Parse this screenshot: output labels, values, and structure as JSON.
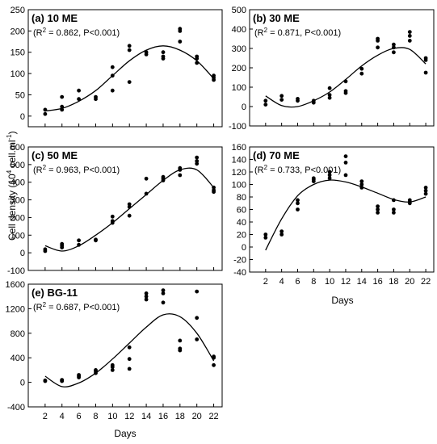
{
  "figure": {
    "ylabel_main": "Cell density (10",
    "ylabel_exp": "4",
    "ylabel_unit": " cell.ml",
    "ylabel_unit_exp": "-1",
    "ylabel_close": ")",
    "xlabel": "Days"
  },
  "chart_data": [
    {
      "type": "scatter",
      "title": "(a) 10 ME",
      "stats_r2": "0.862",
      "stats_p": "P<0.001",
      "xlabel": "Days",
      "ylabel": "Cell density (10^4 cell.ml^-1)",
      "xlim": [
        0,
        23
      ],
      "ylim": [
        -25,
        250
      ],
      "xticks": [],
      "yticks": [
        0,
        50,
        100,
        150,
        200,
        250
      ],
      "points": [
        [
          2,
          5
        ],
        [
          2,
          15
        ],
        [
          4,
          15
        ],
        [
          4,
          22
        ],
        [
          4,
          45
        ],
        [
          6,
          40
        ],
        [
          6,
          60
        ],
        [
          8,
          40
        ],
        [
          8,
          45
        ],
        [
          10,
          60
        ],
        [
          10,
          95
        ],
        [
          10,
          115
        ],
        [
          12,
          80
        ],
        [
          12,
          155
        ],
        [
          12,
          165
        ],
        [
          14,
          145
        ],
        [
          14,
          150
        ],
        [
          16,
          135
        ],
        [
          16,
          140
        ],
        [
          16,
          150
        ],
        [
          18,
          175
        ],
        [
          18,
          200
        ],
        [
          18,
          205
        ],
        [
          20,
          125
        ],
        [
          20,
          135
        ],
        [
          20,
          140
        ],
        [
          22,
          85
        ],
        [
          22,
          90
        ],
        [
          22,
          95
        ]
      ],
      "fit": [
        [
          2,
          12
        ],
        [
          4,
          18
        ],
        [
          6,
          35
        ],
        [
          8,
          60
        ],
        [
          10,
          95
        ],
        [
          12,
          130
        ],
        [
          14,
          155
        ],
        [
          16,
          165
        ],
        [
          18,
          155
        ],
        [
          20,
          130
        ],
        [
          22,
          88
        ]
      ]
    },
    {
      "type": "scatter",
      "title": "(b) 30 ME",
      "stats_r2": "0.871",
      "stats_p": "P<0.001",
      "xlabel": "Days",
      "ylabel": "Cell density (10^4 cell.ml^-1)",
      "xlim": [
        0,
        23
      ],
      "ylim": [
        -100,
        500
      ],
      "xticks": [],
      "yticks": [
        -100,
        0,
        100,
        200,
        300,
        400,
        500
      ],
      "points": [
        [
          2,
          10
        ],
        [
          2,
          30
        ],
        [
          4,
          35
        ],
        [
          4,
          55
        ],
        [
          6,
          30
        ],
        [
          6,
          40
        ],
        [
          8,
          20
        ],
        [
          8,
          30
        ],
        [
          10,
          45
        ],
        [
          10,
          60
        ],
        [
          10,
          95
        ],
        [
          12,
          70
        ],
        [
          12,
          80
        ],
        [
          12,
          130
        ],
        [
          14,
          170
        ],
        [
          14,
          195
        ],
        [
          16,
          305
        ],
        [
          16,
          340
        ],
        [
          16,
          350
        ],
        [
          18,
          280
        ],
        [
          18,
          305
        ],
        [
          18,
          320
        ],
        [
          20,
          340
        ],
        [
          20,
          365
        ],
        [
          20,
          385
        ],
        [
          22,
          175
        ],
        [
          22,
          240
        ],
        [
          22,
          250
        ]
      ],
      "fit": [
        [
          2,
          55
        ],
        [
          4,
          5
        ],
        [
          6,
          0
        ],
        [
          8,
          30
        ],
        [
          10,
          75
        ],
        [
          12,
          140
        ],
        [
          14,
          210
        ],
        [
          16,
          265
        ],
        [
          18,
          300
        ],
        [
          20,
          295
        ],
        [
          22,
          220
        ]
      ]
    },
    {
      "type": "scatter",
      "title": "(c) 50 ME",
      "stats_r2": "0.963",
      "stats_p": "P<0.001",
      "xlabel": "Days",
      "ylabel": "Cell density (10^4 cell.ml^-1)",
      "xlim": [
        0,
        23
      ],
      "ylim": [
        -100,
        600
      ],
      "xticks": [],
      "yticks": [
        -100,
        0,
        100,
        200,
        300,
        400,
        500,
        600
      ],
      "points": [
        [
          2,
          10
        ],
        [
          2,
          20
        ],
        [
          4,
          30
        ],
        [
          4,
          40
        ],
        [
          4,
          50
        ],
        [
          6,
          45
        ],
        [
          6,
          70
        ],
        [
          8,
          70
        ],
        [
          8,
          75
        ],
        [
          10,
          170
        ],
        [
          10,
          180
        ],
        [
          10,
          205
        ],
        [
          12,
          210
        ],
        [
          12,
          260
        ],
        [
          12,
          275
        ],
        [
          14,
          335
        ],
        [
          14,
          420
        ],
        [
          16,
          410
        ],
        [
          16,
          420
        ],
        [
          16,
          430
        ],
        [
          18,
          440
        ],
        [
          18,
          470
        ],
        [
          18,
          480
        ],
        [
          20,
          505
        ],
        [
          20,
          520
        ],
        [
          20,
          540
        ],
        [
          22,
          345
        ],
        [
          22,
          355
        ],
        [
          22,
          370
        ]
      ],
      "fit": [
        [
          2,
          40
        ],
        [
          4,
          10
        ],
        [
          6,
          40
        ],
        [
          8,
          100
        ],
        [
          10,
          170
        ],
        [
          12,
          250
        ],
        [
          14,
          330
        ],
        [
          16,
          410
        ],
        [
          18,
          470
        ],
        [
          20,
          470
        ],
        [
          22,
          370
        ]
      ]
    },
    {
      "type": "scatter",
      "title": "(d) 70 ME",
      "stats_r2": "0.733",
      "stats_p": "P<0.001",
      "xlabel": "Days",
      "ylabel": "Cell density (10^4 cell.ml^-1)",
      "xlim": [
        0,
        23
      ],
      "ylim": [
        -40,
        160
      ],
      "xticks": [
        2,
        4,
        6,
        8,
        10,
        12,
        14,
        16,
        18,
        20,
        22
      ],
      "yticks": [
        -40,
        -20,
        0,
        20,
        40,
        60,
        80,
        100,
        120,
        140,
        160
      ],
      "points": [
        [
          2,
          15
        ],
        [
          2,
          20
        ],
        [
          4,
          20
        ],
        [
          4,
          25
        ],
        [
          6,
          60
        ],
        [
          6,
          70
        ],
        [
          6,
          75
        ],
        [
          8,
          105
        ],
        [
          8,
          108
        ],
        [
          8,
          110
        ],
        [
          10,
          110
        ],
        [
          10,
          115
        ],
        [
          10,
          120
        ],
        [
          12,
          115
        ],
        [
          12,
          135
        ],
        [
          12,
          145
        ],
        [
          14,
          95
        ],
        [
          14,
          100
        ],
        [
          14,
          105
        ],
        [
          16,
          55
        ],
        [
          16,
          60
        ],
        [
          16,
          65
        ],
        [
          18,
          55
        ],
        [
          18,
          60
        ],
        [
          18,
          75
        ],
        [
          20,
          70
        ],
        [
          20,
          72
        ],
        [
          20,
          75
        ],
        [
          22,
          85
        ],
        [
          22,
          90
        ],
        [
          22,
          95
        ]
      ],
      "fit": [
        [
          2,
          -5
        ],
        [
          4,
          45
        ],
        [
          6,
          82
        ],
        [
          8,
          100
        ],
        [
          10,
          107
        ],
        [
          12,
          104
        ],
        [
          14,
          96
        ],
        [
          16,
          86
        ],
        [
          18,
          76
        ],
        [
          20,
          72
        ],
        [
          22,
          80
        ]
      ]
    },
    {
      "type": "scatter",
      "title": "(e) BG-11",
      "stats_r2": "0.687",
      "stats_p": "P<0.001",
      "xlabel": "Days",
      "ylabel": "Cell density (10^4 cell.ml^-1)",
      "xlim": [
        0,
        23
      ],
      "ylim": [
        -400,
        1600
      ],
      "xticks": [
        2,
        4,
        6,
        8,
        10,
        12,
        14,
        16,
        18,
        20,
        22
      ],
      "yticks": [
        -400,
        0,
        400,
        800,
        1200,
        1600
      ],
      "points": [
        [
          2,
          20
        ],
        [
          2,
          30
        ],
        [
          4,
          20
        ],
        [
          4,
          30
        ],
        [
          4,
          40
        ],
        [
          6,
          80
        ],
        [
          6,
          100
        ],
        [
          6,
          120
        ],
        [
          8,
          150
        ],
        [
          8,
          180
        ],
        [
          8,
          200
        ],
        [
          10,
          200
        ],
        [
          10,
          250
        ],
        [
          10,
          280
        ],
        [
          12,
          220
        ],
        [
          12,
          380
        ],
        [
          12,
          570
        ],
        [
          14,
          1350
        ],
        [
          14,
          1400
        ],
        [
          14,
          1450
        ],
        [
          16,
          1300
        ],
        [
          16,
          1450
        ],
        [
          16,
          1500
        ],
        [
          18,
          520
        ],
        [
          18,
          550
        ],
        [
          18,
          680
        ],
        [
          20,
          700
        ],
        [
          20,
          1050
        ],
        [
          20,
          1480
        ],
        [
          22,
          280
        ],
        [
          22,
          400
        ],
        [
          22,
          420
        ]
      ],
      "fit": [
        [
          2,
          100
        ],
        [
          4,
          -70
        ],
        [
          6,
          -10
        ],
        [
          8,
          150
        ],
        [
          10,
          380
        ],
        [
          12,
          640
        ],
        [
          14,
          900
        ],
        [
          16,
          1100
        ],
        [
          18,
          1070
        ],
        [
          20,
          800
        ],
        [
          22,
          350
        ]
      ]
    }
  ]
}
